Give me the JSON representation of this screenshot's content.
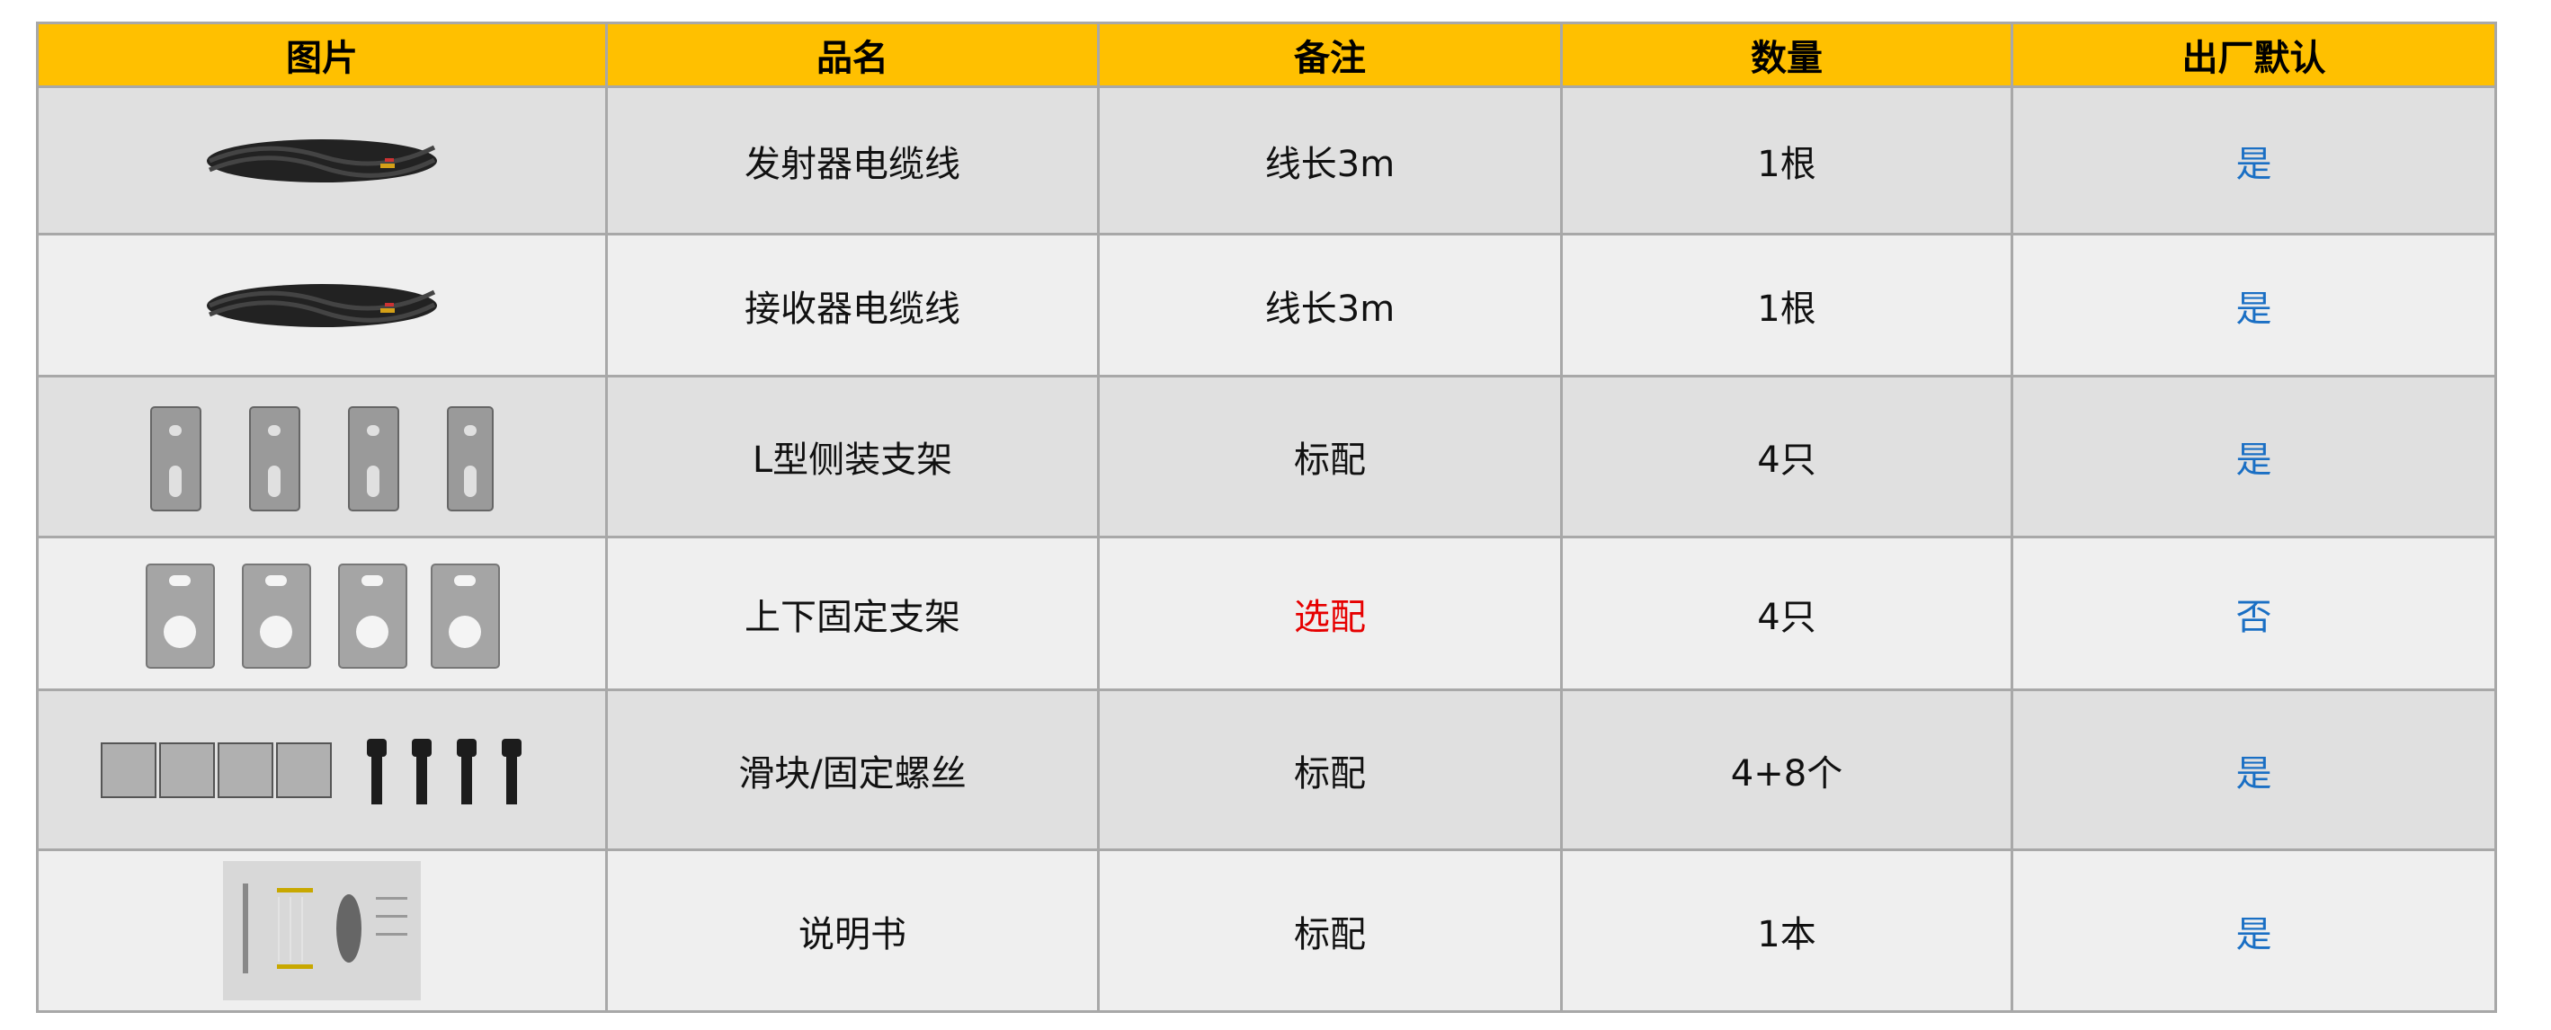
{
  "header": [
    "图片",
    "品名",
    "备注",
    "数量",
    "出厂默认"
  ],
  "rows": [
    {
      "image": "cable-coil",
      "name": "发射器电缆线",
      "note": "线长3m",
      "qty": "1根",
      "default": "是"
    },
    {
      "image": "cable-coil",
      "name": "接收器电缆线",
      "note": "线长3m",
      "qty": "1根",
      "default": "是"
    },
    {
      "image": "l-bracket-set",
      "name": "L型侧装支架",
      "note": "标配",
      "qty": "4只",
      "default": "是"
    },
    {
      "image": "updown-bracket-set",
      "name": "上下固定支架",
      "note": "选配",
      "qty": "4只",
      "default": "否"
    },
    {
      "image": "slider-and-screws",
      "name": "滑块/固定螺丝",
      "note": "标配",
      "qty": "4+8个",
      "default": "是"
    },
    {
      "image": "manual-booklet",
      "name": "说明书",
      "note": "标配",
      "qty": "1本",
      "default": "是"
    }
  ],
  "colors": {
    "header_bg": "#ffc000",
    "default_text": "#1a6fc4",
    "optional_note": "#e60000"
  }
}
